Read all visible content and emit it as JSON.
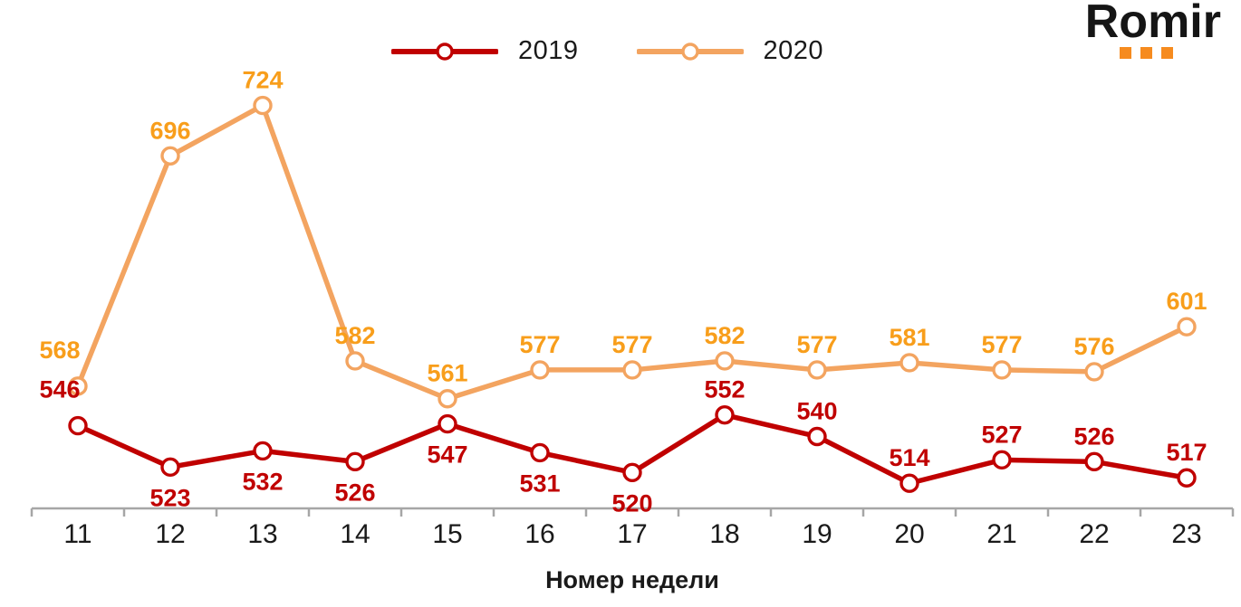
{
  "logo": {
    "text": "Romir",
    "dot_color": "#F68B1F",
    "dot_count": 3
  },
  "legend": {
    "items": [
      {
        "label": "2019",
        "color": "#C00000"
      },
      {
        "label": "2020",
        "color": "#F3A460"
      }
    ]
  },
  "chart_data": {
    "type": "line",
    "title": "",
    "xlabel": "Номер недели",
    "ylabel": "",
    "x": [
      11,
      12,
      13,
      14,
      15,
      16,
      17,
      18,
      19,
      20,
      21,
      22,
      23
    ],
    "series": [
      {
        "name": "2020",
        "line_color": "#F3A460",
        "label_color": "#F89E1B",
        "marker": "open-circle",
        "values": [
          568,
          696,
          724,
          582,
          561,
          577,
          577,
          582,
          577,
          581,
          577,
          576,
          601
        ],
        "label_positions": [
          "above",
          "above",
          "above",
          "above",
          "above",
          "above",
          "above",
          "above",
          "above",
          "above",
          "above",
          "above",
          "above"
        ]
      },
      {
        "name": "2019",
        "line_color": "#C00000",
        "label_color": "#C00000",
        "marker": "open-circle",
        "values": [
          546,
          523,
          532,
          526,
          547,
          531,
          520,
          552,
          540,
          514,
          527,
          526,
          517
        ],
        "label_positions": [
          "above",
          "below",
          "below",
          "below",
          "below",
          "below",
          "below",
          "above",
          "above",
          "above",
          "above",
          "above",
          "above"
        ]
      }
    ],
    "ylim": [
      495,
      760
    ],
    "grid": false,
    "legend_position": "top-center",
    "axis_color": "#A6A6A6",
    "tick_label_color": "#1A1A1A"
  }
}
